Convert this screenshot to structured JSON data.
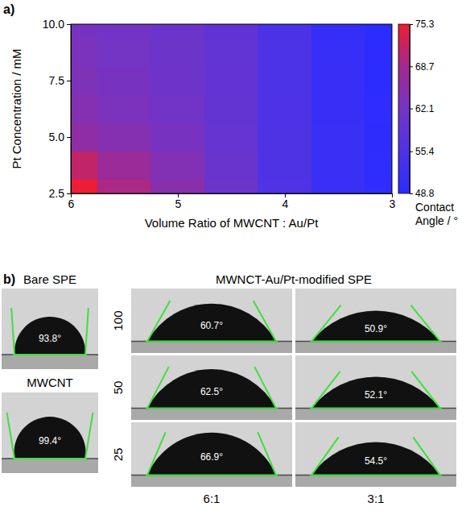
{
  "chart_data": [
    {
      "type": "heatmap",
      "panel": "a)",
      "x_label": "Volume Ratio of MWCNT : Au/Pt",
      "y_label": "Pt Concentration / mM",
      "x": [
        6,
        5.5,
        5,
        4.5,
        4,
        3.5,
        3
      ],
      "y": [
        2.5,
        3.75,
        5,
        6.25,
        7.5,
        8.75,
        10
      ],
      "cells": [
        [
          75.3,
          69.5,
          65.0,
          60.5,
          55.5,
          51.5,
          49.5
        ],
        [
          71.5,
          67.5,
          64.0,
          60.0,
          55.3,
          51.3,
          49.3
        ],
        [
          66.0,
          64.5,
          62.5,
          59.5,
          55.2,
          51.2,
          49.2
        ],
        [
          64.5,
          63.0,
          61.5,
          59.2,
          55.1,
          51.1,
          49.1
        ],
        [
          63.5,
          62.5,
          61.0,
          59.0,
          55.0,
          51.0,
          49.0
        ],
        [
          63.0,
          62.0,
          60.8,
          58.8,
          55.0,
          50.8,
          48.9
        ],
        [
          62.5,
          61.8,
          60.5,
          58.5,
          54.8,
          50.5,
          48.8
        ]
      ],
      "xlim": [
        6,
        3
      ],
      "xticks": [
        6,
        5,
        4,
        3
      ],
      "ylim": [
        2.5,
        10
      ],
      "yticks": [
        2.5,
        {
          "value": 5,
          "label": "5.0"
        },
        7.5,
        {
          "value": 10,
          "label": "10.0"
        }
      ],
      "colorbar": {
        "title": "Contact Angle / °",
        "range": [
          48.8,
          75.3
        ],
        "ticks": [
          75.3,
          68.7,
          62.1,
          55.4,
          48.8
        ]
      }
    },
    {
      "type": "droplet_images",
      "panel": "b)",
      "images": [
        {
          "title": "Bare SPE",
          "angle": {
            "value": 93.8,
            "label": "93.8°"
          }
        },
        {
          "title": "MWCNT",
          "angle": {
            "value": 99.4,
            "label": "99.4°"
          }
        }
      ],
      "group": {
        "title": "MWNCT-Au/Pt-modified SPE",
        "rows": [
          "100",
          "50",
          "25"
        ],
        "columns": [
          "6:1",
          "3:1"
        ],
        "angles": [
          [
            {
              "value": 60.7,
              "label": "60.7°"
            },
            {
              "value": 50.9,
              "label": "50.9°"
            }
          ],
          [
            {
              "value": 62.5,
              "label": "62.5°"
            },
            {
              "value": 52.1,
              "label": "52.1°"
            }
          ],
          [
            {
              "value": 66.9,
              "label": "66.9°"
            },
            {
              "value": 54.5,
              "label": "54.5°"
            }
          ]
        ]
      }
    }
  ]
}
